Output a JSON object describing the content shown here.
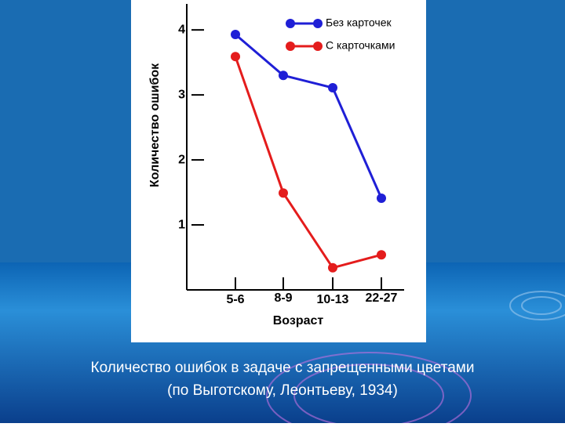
{
  "chart_data": {
    "type": "line",
    "x_label": "Возраст",
    "y_label": "Количество ошибок",
    "categories": [
      "5-6",
      "8-9",
      "10-13",
      "22-27"
    ],
    "series": [
      {
        "name": "Без карточек",
        "color": "#1f1fd6",
        "values": [
          3.93,
          3.3,
          3.11,
          1.41
        ]
      },
      {
        "name": "С карточками",
        "color": "#e41c1c",
        "values": [
          3.59,
          1.49,
          0.34,
          0.54
        ]
      }
    ],
    "ylim": [
      0,
      4.4
    ],
    "yticks": [
      1,
      2,
      3,
      4
    ],
    "grid": false,
    "legend": "upper right"
  },
  "caption": [
    "Количество ошибок в задаче с запрещенными цветами",
    "(по Выготскому, Леонтьеву, 1934)"
  ]
}
